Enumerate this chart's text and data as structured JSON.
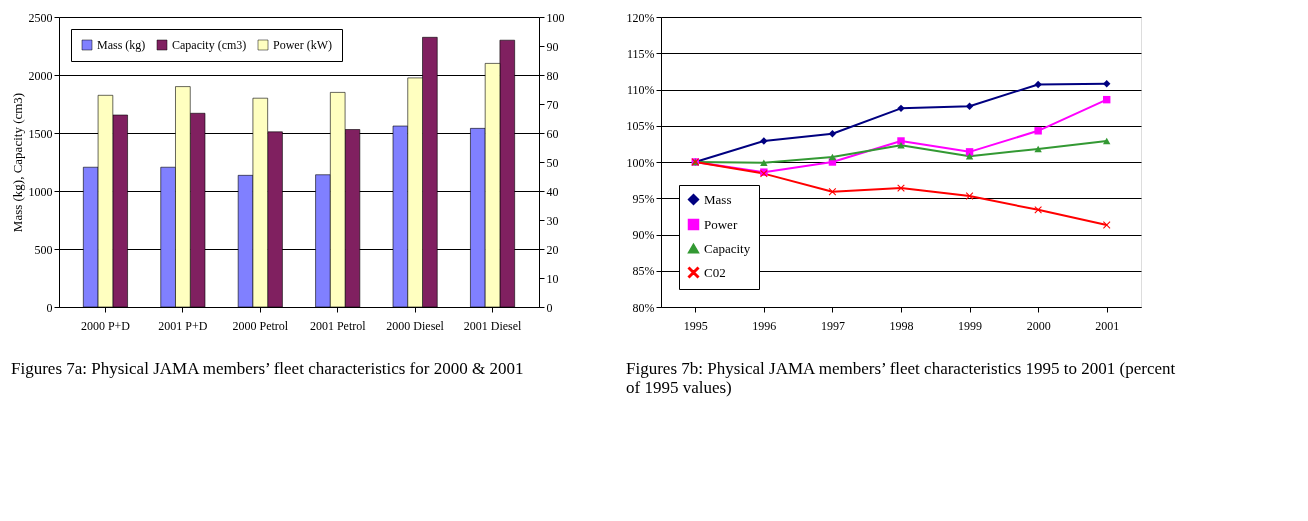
{
  "chart_data": [
    {
      "type": "bar",
      "categories": [
        "2000 P+D",
        "2001 P+D",
        "2000 Petrol",
        "2001 Petrol",
        "2000 Diesel",
        "2001 Diesel"
      ],
      "ylabel": "Mass (kg), Capacity (cm3)",
      "ylim": [
        0,
        2500
      ],
      "yticks": [
        0,
        500,
        1000,
        1500,
        2000,
        2500
      ],
      "y2lim": [
        0,
        100
      ],
      "y2ticks": [
        0,
        10,
        20,
        30,
        40,
        50,
        60,
        70,
        80,
        90,
        100
      ],
      "series": [
        {
          "name": "Mass (kg)",
          "color": "#8080ff",
          "values": [
            1205,
            1205,
            1135,
            1140,
            1560,
            1540
          ]
        },
        {
          "name": "Power (kW)",
          "color": "#ffffc0",
          "axis": "y2",
          "values": [
            73,
            76,
            72,
            74,
            79,
            84
          ]
        },
        {
          "name": "Capacity (cm3)",
          "color": "#802060",
          "values": [
            1655,
            1670,
            1510,
            1530,
            2325,
            2300
          ]
        }
      ],
      "grid": "y",
      "legend": "top left",
      "annotations": [
        "Figures 7a: Physical JAMA members’ fleet characteristics for 2000 & 2001"
      ]
    },
    {
      "type": "line",
      "categories": [
        "1995",
        "1996",
        "1997",
        "1998",
        "1999",
        "2000",
        "2001"
      ],
      "ylim": [
        80,
        120
      ],
      "yticks": [
        {
          "value": 80,
          "label": "80%"
        },
        {
          "value": 85,
          "label": "85%"
        },
        {
          "value": 90,
          "label": "90%"
        },
        {
          "value": 95,
          "label": "95%"
        },
        {
          "value": 100,
          "label": "100%"
        },
        {
          "value": 105,
          "label": "105%"
        },
        {
          "value": 110,
          "label": "110%"
        },
        {
          "value": 115,
          "label": "115%"
        },
        {
          "value": 120,
          "label": "120%"
        }
      ],
      "series": [
        {
          "name": "Mass",
          "color": "#000080",
          "marker": "diamond",
          "values": [
            100,
            102.9,
            103.9,
            107.4,
            107.7,
            110.7,
            110.8
          ]
        },
        {
          "name": "Power",
          "color": "#ff00ff",
          "marker": "square",
          "values": [
            100,
            98.6,
            100.0,
            102.9,
            101.4,
            104.3,
            108.6
          ]
        },
        {
          "name": "Capacity",
          "color": "#339933",
          "marker": "triangle",
          "values": [
            100,
            99.9,
            100.7,
            102.3,
            100.8,
            101.8,
            102.9
          ]
        },
        {
          "name": "C02",
          "color": "#ff0000",
          "marker": "cross",
          "values": [
            100,
            98.4,
            95.9,
            96.4,
            95.3,
            93.4,
            91.3
          ]
        }
      ],
      "grid": "y",
      "legend": "bottom left",
      "annotations": [
        "Figures 7b: Physical JAMA members’ fleet characteristics 1995 to 2001 (percent of 1995 values)"
      ]
    }
  ]
}
